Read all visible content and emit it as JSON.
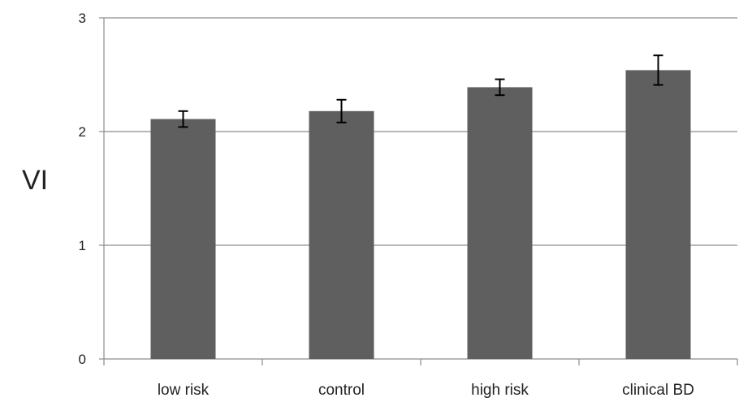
{
  "chart_data": {
    "type": "bar",
    "title": "",
    "xlabel": "",
    "ylabel": "VI",
    "categories": [
      "low risk",
      "control",
      "high risk",
      "clinical BD"
    ],
    "series": [
      {
        "values": [
          2.11,
          2.18,
          2.39,
          2.54
        ],
        "error": [
          0.07,
          0.1,
          0.07,
          0.13
        ],
        "color": "#5f5f5f"
      }
    ],
    "ylim": [
      0,
      3
    ],
    "yticks": [
      0,
      1,
      2,
      3
    ],
    "grid": true,
    "legend": "none"
  },
  "colors": {
    "bar": "#5f5f5f",
    "grid": "#8c8c8c",
    "axis": "#8c8c8c",
    "error_bar": "#000000",
    "text": "#222222"
  }
}
